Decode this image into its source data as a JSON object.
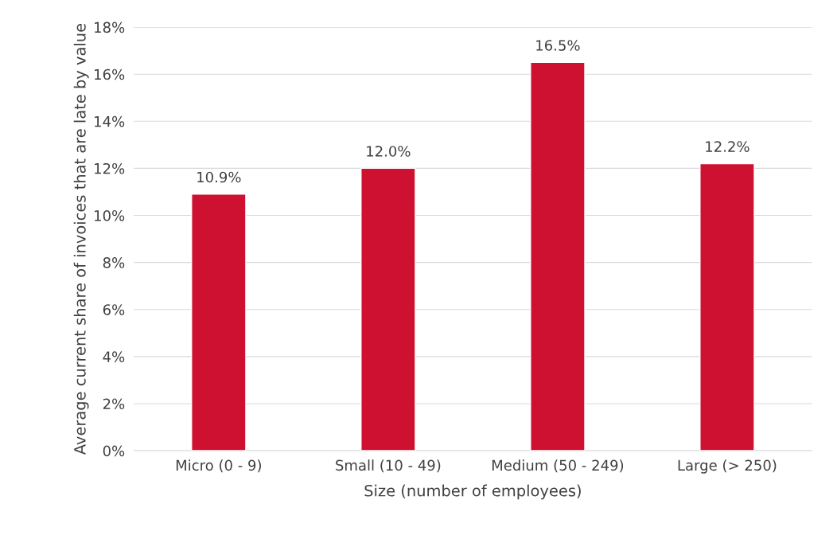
{
  "chart_data": {
    "type": "bar",
    "categories": [
      "Micro (0 - 9)",
      "Small (10 - 49)",
      "Medium (50 - 249)",
      "Large (> 250)"
    ],
    "values": [
      10.9,
      12.0,
      16.5,
      12.2
    ],
    "value_labels": [
      "10.9%",
      "12.0%",
      "16.5%",
      "12.2%"
    ],
    "color": "#ce1130",
    "xlabel": "Size (number of employees)",
    "ylabel": "Average current share of invoices that are late by value",
    "ylim": [
      0,
      18
    ],
    "yticks": [
      {
        "value": 0,
        "label": "0%"
      },
      {
        "value": 2,
        "label": "2%"
      },
      {
        "value": 4,
        "label": "4%"
      },
      {
        "value": 6,
        "label": "6%"
      },
      {
        "value": 8,
        "label": "8%"
      },
      {
        "value": 10,
        "label": "10%"
      },
      {
        "value": 12,
        "label": "12%"
      },
      {
        "value": 14,
        "label": "14%"
      },
      {
        "value": 16,
        "label": "16%"
      },
      {
        "value": 18,
        "label": "18%"
      }
    ],
    "grid": "y"
  }
}
